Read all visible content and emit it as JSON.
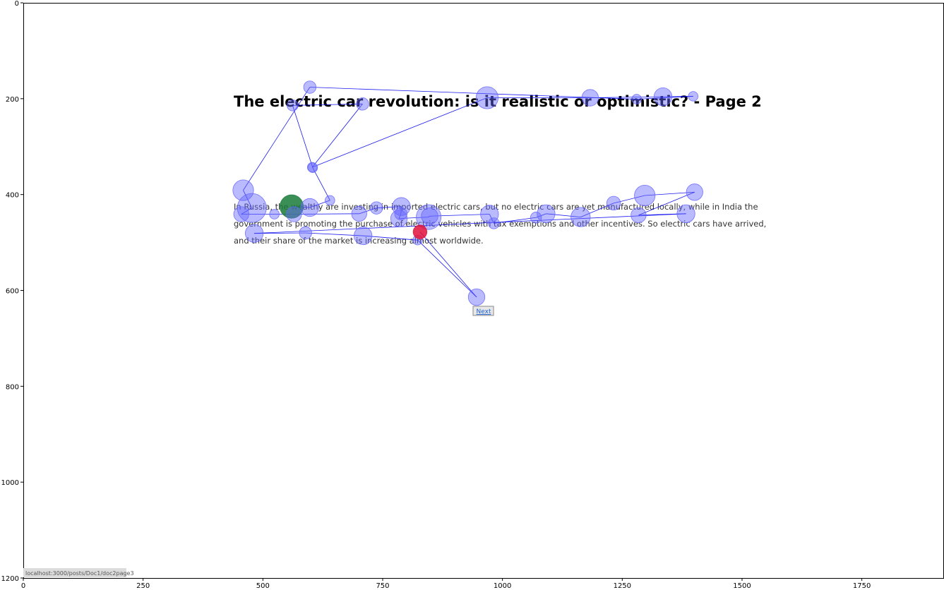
{
  "page": {
    "title": "The electric car revolution: is it realistic or optimistic? - Page 2",
    "body_lines": [
      "In Russia, the wealthy are investing in imported electric cars, but no electric cars are yet manufactured locally, while in India the",
      "government is promoting the purchase of electric vehicles with tax exemptions and other incentives. So electric cars have arrived,",
      "and their share of the market is increasing almost worldwide."
    ],
    "next_label": "Next",
    "status_url": "localhost:3000/posts/Doc1/doc2page3"
  },
  "chart_data": {
    "type": "scatter",
    "title": "",
    "xlabel": "",
    "ylabel": "",
    "xlim": [
      0,
      1920
    ],
    "ylim": [
      1200,
      0
    ],
    "xticks": [
      0,
      250,
      500,
      750,
      1000,
      1250,
      1500,
      1750
    ],
    "yticks": [
      0,
      200,
      400,
      600,
      800,
      1000,
      1200
    ],
    "colors": {
      "fixation": "#6666ff",
      "path": "#0000ee",
      "first": "#1a7a3a",
      "last": "#e0103a"
    },
    "fixations": [
      {
        "x": 560,
        "y": 425,
        "r": 17
      },
      {
        "x": 598,
        "y": 427,
        "r": 13
      },
      {
        "x": 640,
        "y": 412,
        "r": 7
      },
      {
        "x": 604,
        "y": 344,
        "r": 7
      },
      {
        "x": 562,
        "y": 214,
        "r": 8
      },
      {
        "x": 708,
        "y": 211,
        "r": 9
      },
      {
        "x": 603,
        "y": 343,
        "r": 7
      },
      {
        "x": 968,
        "y": 198,
        "r": 16
      },
      {
        "x": 1183,
        "y": 198,
        "r": 12
      },
      {
        "x": 1335,
        "y": 196,
        "r": 13
      },
      {
        "x": 1398,
        "y": 195,
        "r": 7
      },
      {
        "x": 1280,
        "y": 201,
        "r": 7
      },
      {
        "x": 598,
        "y": 176,
        "r": 9
      },
      {
        "x": 459,
        "y": 391,
        "r": 15
      },
      {
        "x": 477,
        "y": 428,
        "r": 21
      },
      {
        "x": 455,
        "y": 441,
        "r": 11
      },
      {
        "x": 524,
        "y": 441,
        "r": 7
      },
      {
        "x": 565,
        "y": 441,
        "r": 11
      },
      {
        "x": 701,
        "y": 440,
        "r": 11
      },
      {
        "x": 737,
        "y": 428,
        "r": 9
      },
      {
        "x": 789,
        "y": 425,
        "r": 13
      },
      {
        "x": 788,
        "y": 440,
        "r": 9
      },
      {
        "x": 784,
        "y": 450,
        "r": 12
      },
      {
        "x": 846,
        "y": 447,
        "r": 18
      },
      {
        "x": 848,
        "y": 445,
        "r": 12
      },
      {
        "x": 973,
        "y": 441,
        "r": 13
      },
      {
        "x": 982,
        "y": 460,
        "r": 8
      },
      {
        "x": 1070,
        "y": 448,
        "r": 8
      },
      {
        "x": 1091,
        "y": 440,
        "r": 13
      },
      {
        "x": 1163,
        "y": 447,
        "r": 14
      },
      {
        "x": 1232,
        "y": 418,
        "r": 10
      },
      {
        "x": 1297,
        "y": 402,
        "r": 15
      },
      {
        "x": 1401,
        "y": 395,
        "r": 12
      },
      {
        "x": 1284,
        "y": 443,
        "r": 11
      },
      {
        "x": 1383,
        "y": 440,
        "r": 13
      },
      {
        "x": 482,
        "y": 481,
        "r": 13
      },
      {
        "x": 589,
        "y": 480,
        "r": 9
      },
      {
        "x": 709,
        "y": 486,
        "r": 13
      },
      {
        "x": 823,
        "y": 495,
        "r": 7
      },
      {
        "x": 946,
        "y": 614,
        "r": 12
      },
      {
        "x": 828,
        "y": 478,
        "r": 10
      }
    ]
  }
}
